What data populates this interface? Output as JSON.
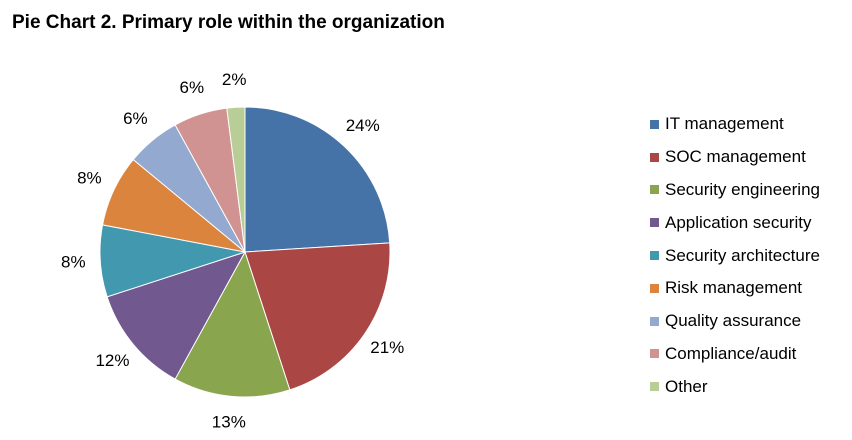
{
  "title": "Pie Chart 2. Primary role within the organization",
  "chart_data": {
    "type": "pie",
    "title": "Pie Chart 2. Primary role within the organization",
    "categories": [
      "IT management",
      "SOC management",
      "Security engineering",
      "Application security",
      "Security architecture",
      "Risk management",
      "Quality assurance",
      "Compliance/audit",
      "Other"
    ],
    "values": [
      24,
      21,
      13,
      12,
      8,
      8,
      6,
      6,
      2
    ],
    "labels": [
      "24%",
      "21%",
      "13%",
      "12%",
      "8%",
      "8%",
      "6%",
      "6%",
      "2%"
    ],
    "colors": [
      "#4572A7",
      "#AA4643",
      "#89A54E",
      "#71588F",
      "#4198AF",
      "#DB843D",
      "#93A9CF",
      "#D19392",
      "#B9CD96"
    ],
    "start_angle_deg": 0,
    "direction": "clockwise",
    "legend_position": "right"
  }
}
